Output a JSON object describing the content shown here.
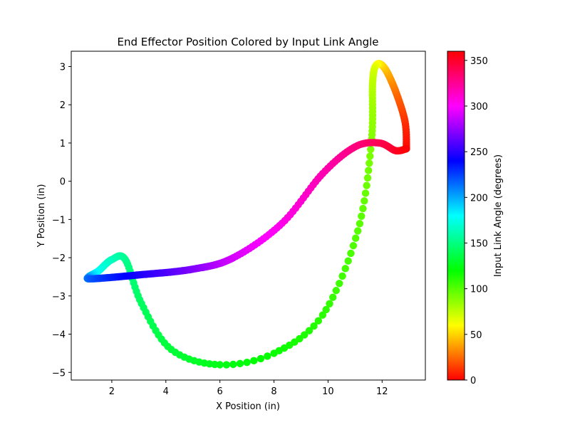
{
  "chart_data": {
    "type": "scatter",
    "title": "End Effector Position Colored by Input Link Angle",
    "xlabel": "X Position (in)",
    "ylabel": "Y Position (in)",
    "xlim": [
      0.5,
      13.6
    ],
    "ylim": [
      -5.2,
      3.4
    ],
    "xticks": [
      2,
      4,
      6,
      8,
      10,
      12
    ],
    "yticks": [
      -5,
      -4,
      -3,
      -2,
      -1,
      0,
      1,
      2,
      3
    ],
    "x_tick_labels": [
      "2",
      "4",
      "6",
      "8",
      "10",
      "12"
    ],
    "y_tick_labels": [
      "−5",
      "−4",
      "−3",
      "−2",
      "−1",
      "0",
      "1",
      "2",
      "3"
    ],
    "grid": false,
    "colorbar": {
      "label": "Input Link Angle (degrees)",
      "range": [
        0,
        360
      ],
      "ticks": [
        0,
        50,
        100,
        150,
        200,
        250,
        300,
        350
      ],
      "tick_labels": [
        "0",
        "50",
        "100",
        "150",
        "200",
        "250",
        "300",
        "350"
      ],
      "colormap": "hsv"
    },
    "curve_keypoints": [
      {
        "angle": 0,
        "x": 12.9,
        "y": 0.85
      },
      {
        "angle": 10,
        "x": 12.85,
        "y": 1.55
      },
      {
        "angle": 25,
        "x": 12.5,
        "y": 2.35
      },
      {
        "angle": 45,
        "x": 12.1,
        "y": 2.95
      },
      {
        "angle": 60,
        "x": 11.8,
        "y": 3.05
      },
      {
        "angle": 75,
        "x": 11.65,
        "y": 2.6
      },
      {
        "angle": 90,
        "x": 11.6,
        "y": 1.0
      },
      {
        "angle": 100,
        "x": 11.1,
        "y": -1.3
      },
      {
        "angle": 110,
        "x": 9.8,
        "y": -3.5
      },
      {
        "angle": 118,
        "x": 8.0,
        "y": -4.5
      },
      {
        "angle": 125,
        "x": 6.0,
        "y": -4.8
      },
      {
        "angle": 133,
        "x": 4.2,
        "y": -4.4
      },
      {
        "angle": 142,
        "x": 3.1,
        "y": -3.2
      },
      {
        "angle": 152,
        "x": 2.5,
        "y": -2.05
      },
      {
        "angle": 162,
        "x": 2.0,
        "y": -2.05
      },
      {
        "angle": 175,
        "x": 1.5,
        "y": -2.35
      },
      {
        "angle": 200,
        "x": 1.15,
        "y": -2.5
      },
      {
        "angle": 220,
        "x": 1.3,
        "y": -2.55
      },
      {
        "angle": 245,
        "x": 3.0,
        "y": -2.45
      },
      {
        "angle": 270,
        "x": 5.0,
        "y": -2.3
      },
      {
        "angle": 290,
        "x": 6.5,
        "y": -2.0
      },
      {
        "angle": 305,
        "x": 8.3,
        "y": -1.1
      },
      {
        "angle": 318,
        "x": 9.8,
        "y": 0.2
      },
      {
        "angle": 330,
        "x": 11.0,
        "y": 0.9
      },
      {
        "angle": 340,
        "x": 11.9,
        "y": 1.0
      },
      {
        "angle": 350,
        "x": 12.5,
        "y": 0.8
      },
      {
        "angle": 360,
        "x": 12.9,
        "y": 0.85
      }
    ]
  }
}
